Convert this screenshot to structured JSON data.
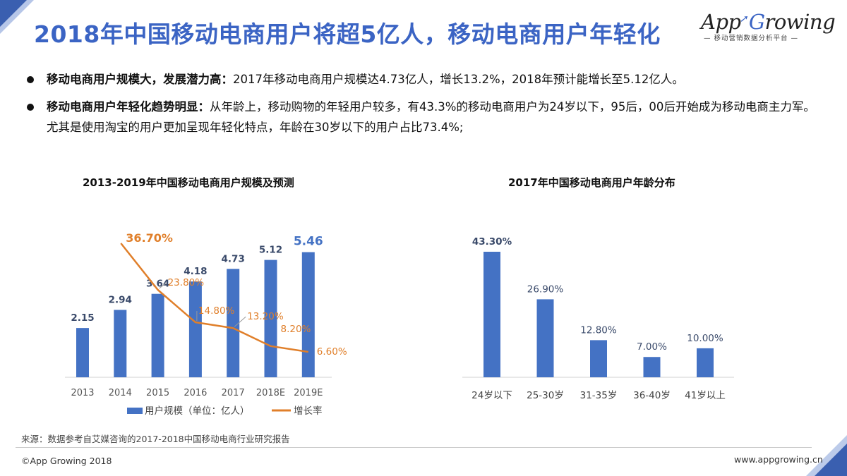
{
  "title": "2018年中国移动电商用户将超5亿人，移动电商用户年轻化",
  "logo": {
    "part1": "App",
    "part2": "G",
    "part3": "rowing",
    "sub": "— 移动营销数据分析平台 —"
  },
  "bullets": [
    {
      "label": "移动电商用户规模大，发展潜力高：",
      "text": "2017年移动电商用户规模达4.73亿人，增长13.2%，2018年预计能增长至5.12亿人。"
    },
    {
      "label": "移动电商用户年轻化趋势明显：",
      "text": "从年龄上，移动购物的年轻用户较多，有43.3%的移动电商用户为24岁以下，95后，00后开始成为移动电商主力军。尤其是使用淘宝的用户更加呈现年轻化特点，年龄在30岁以下的用户占比73.4%;"
    }
  ],
  "colors": {
    "bar": "#4472c4",
    "line": "#e07f2a",
    "title": "#3b64c4"
  },
  "chart_data": [
    {
      "type": "bar",
      "title": "2013-2019年中国移动电商用户规模及预测",
      "categories": [
        "2013",
        "2014",
        "2015",
        "2016",
        "2017",
        "2018E",
        "2019E"
      ],
      "series": [
        {
          "name": "用户规模（单位：亿人）",
          "type": "bar",
          "values": [
            2.15,
            2.94,
            3.64,
            4.18,
            4.73,
            5.12,
            5.46
          ],
          "labels": [
            "2.15",
            "2.94",
            "3.64",
            "4.18",
            "4.73",
            "5.12",
            "5.46"
          ]
        },
        {
          "name": "增长率",
          "type": "line",
          "values": [
            null,
            36.7,
            23.8,
            14.8,
            13.2,
            8.2,
            6.6
          ],
          "labels": [
            "",
            "36.70%",
            "23.80%",
            "14.80%",
            "13.20%",
            "8.20%",
            "6.60%"
          ]
        }
      ],
      "legend": [
        "用户规模（单位：亿人）",
        "增长率"
      ],
      "ylim": [
        0,
        6
      ]
    },
    {
      "type": "bar",
      "title": "2017年中国移动电商用户年龄分布",
      "categories": [
        "24岁以下",
        "25-30岁",
        "31-35岁",
        "36-40岁",
        "41岁以上"
      ],
      "values": [
        43.3,
        26.9,
        12.8,
        7.0,
        10.0
      ],
      "labels": [
        "43.30%",
        "26.90%",
        "12.80%",
        "7.00%",
        "10.00%"
      ],
      "ylim": [
        0,
        45
      ]
    }
  ],
  "footer": {
    "source": "来源：数据参考自艾媒咨询的2017-2018中国移动电商行业研究报告",
    "copyright": "©App Growing 2018",
    "website": "www.appgrowing.cn"
  }
}
